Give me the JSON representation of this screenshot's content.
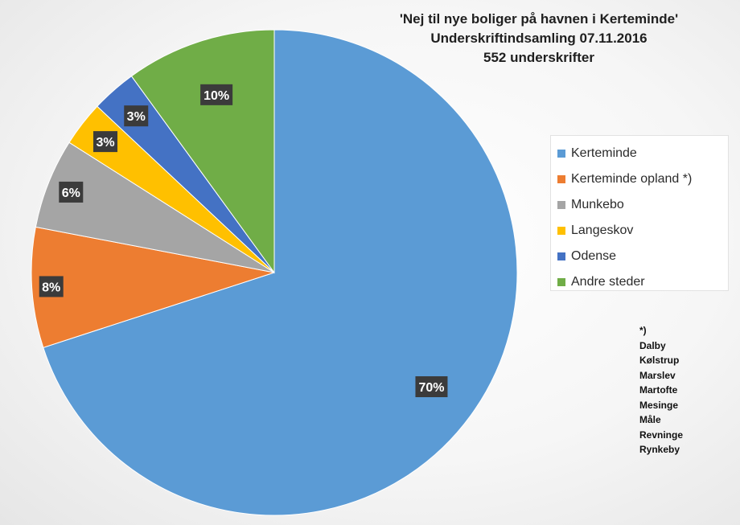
{
  "title": {
    "line1": "'Nej til nye boliger på havnen i Kerteminde'",
    "line2": "Underskriftindsamling 07.11.2016",
    "line3": "552 underskrifter"
  },
  "chart_data": {
    "type": "pie",
    "title": "'Nej til nye boliger på havnen i Kerteminde' Underskriftindsamling 07.11.2016 552 underskrifter",
    "legend_position": "right",
    "slices": [
      {
        "name": "Kerteminde",
        "value": 70,
        "label": "70%",
        "color": "#5b9bd5"
      },
      {
        "name": "Kerteminde opland *)",
        "value": 8,
        "label": "8%",
        "color": "#ed7d31"
      },
      {
        "name": "Munkebo",
        "value": 6,
        "label": "6%",
        "color": "#a5a5a5"
      },
      {
        "name": "Langeskov",
        "value": 3,
        "label": "3%",
        "color": "#ffc000"
      },
      {
        "name": "Odense",
        "value": 3,
        "label": "3%",
        "color": "#4472c4"
      },
      {
        "name": "Andre steder",
        "value": 10,
        "label": "10%",
        "color": "#70ad47"
      }
    ]
  },
  "note": {
    "marker": "*)",
    "items": [
      "Dalby",
      "Kølstrup",
      "Marslev",
      "Martofte",
      "Mesinge",
      "Måle",
      "Revninge",
      "Rynkeby"
    ]
  }
}
